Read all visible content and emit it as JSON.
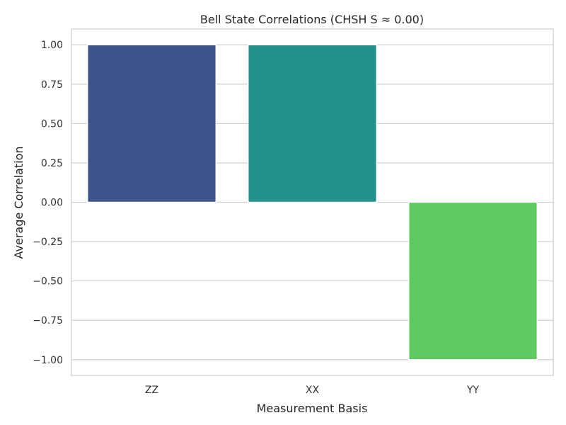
{
  "chart_data": {
    "type": "bar",
    "title": "Bell State Correlations (CHSH S ≈ 0.00)",
    "xlabel": "Measurement Basis",
    "ylabel": "Average Correlation",
    "categories": [
      "ZZ",
      "XX",
      "YY"
    ],
    "values": [
      1.0,
      1.0,
      -1.0
    ],
    "colors": [
      "#3b528b",
      "#21918c",
      "#5ec962"
    ],
    "ylim": [
      -1.1,
      1.1
    ],
    "yticks": [
      1.0,
      0.75,
      0.5,
      0.25,
      0.0,
      -0.25,
      -0.5,
      -0.75,
      -1.0
    ],
    "ytick_labels": [
      "1.00",
      "0.75",
      "0.50",
      "0.25",
      "0.00",
      "−0.25",
      "−0.50",
      "−0.75",
      "−1.00"
    ],
    "grid": "horizontal",
    "legend": "none"
  }
}
